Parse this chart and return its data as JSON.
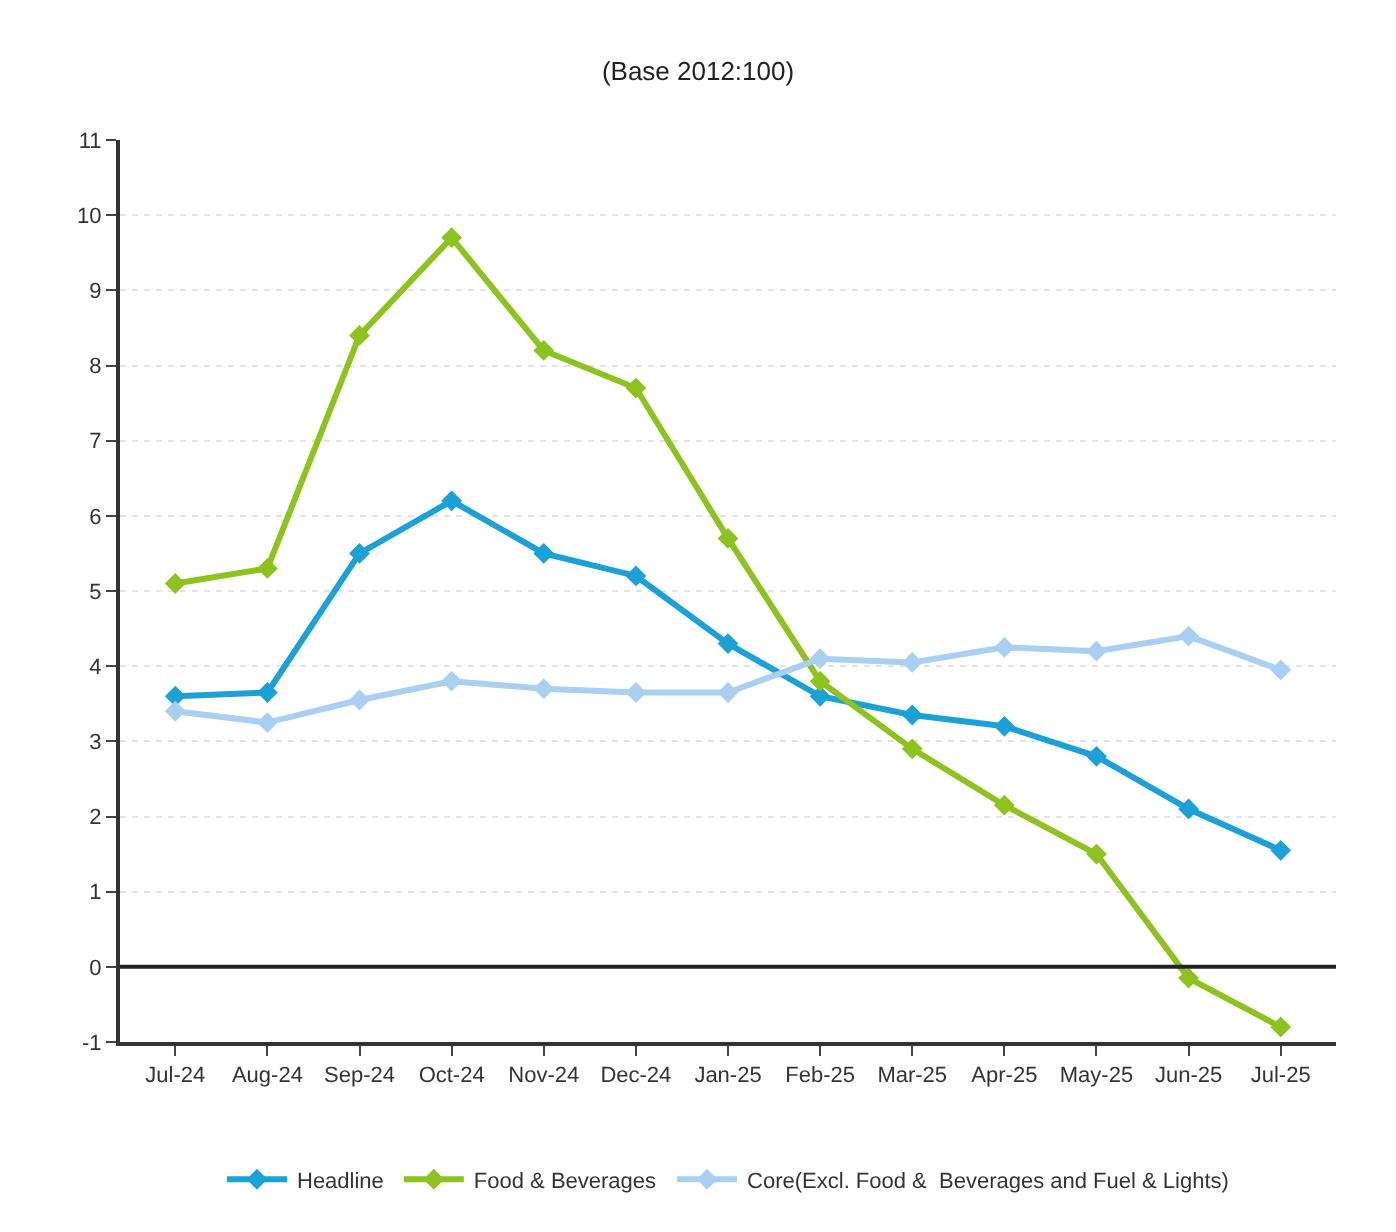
{
  "chart_data": {
    "type": "line",
    "title": "(Base 2012:100)",
    "categories": [
      "Jul-24",
      "Aug-24",
      "Sep-24",
      "Oct-24",
      "Nov-24",
      "Dec-24",
      "Jan-25",
      "Feb-25",
      "Mar-25",
      "Apr-25",
      "May-25",
      "Jun-25",
      "Jul-25"
    ],
    "series": [
      {
        "name": "Headline",
        "color": "#1ba1d8",
        "values": [
          3.6,
          3.65,
          5.5,
          6.2,
          5.5,
          5.2,
          4.3,
          3.6,
          3.35,
          3.2,
          2.8,
          2.1,
          1.55
        ]
      },
      {
        "name": "Food & Beverages",
        "color": "#8dc21f",
        "values": [
          5.1,
          5.3,
          8.4,
          9.7,
          8.2,
          7.7,
          5.7,
          3.8,
          2.9,
          2.15,
          1.5,
          -0.15,
          -0.8
        ]
      },
      {
        "name": "Core(Excl. Food &  Beverages and Fuel & Lights)",
        "color": "#a9cff2",
        "values": [
          3.4,
          3.25,
          3.55,
          3.8,
          3.7,
          3.65,
          3.65,
          4.1,
          4.05,
          4.25,
          4.2,
          4.4,
          3.95
        ]
      }
    ],
    "ylim": [
      -1,
      11
    ],
    "yticks": [
      -1,
      0,
      1,
      2,
      3,
      4,
      5,
      6,
      7,
      8,
      9,
      10,
      11
    ],
    "ref_lines": [
      {
        "axis": "y",
        "value": 0,
        "color": "#222222",
        "line_style": "solid"
      }
    ],
    "grid": "y",
    "legend": "bottom",
    "marker": "diamond",
    "line_style": "solid"
  }
}
